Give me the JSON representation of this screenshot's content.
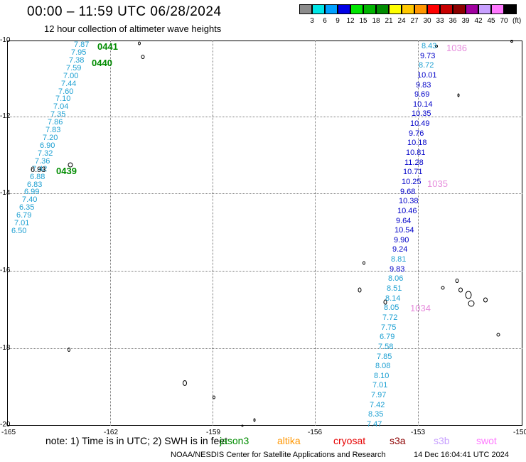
{
  "header": {
    "title": "00:00 – 11:59 UTC 06/28/2024",
    "subtitle": "12 hour collection of altimeter wave heights"
  },
  "color_scale": {
    "labels": [
      "3",
      "6",
      "9",
      "12",
      "15",
      "18",
      "21",
      "24",
      "27",
      "30",
      "33",
      "36",
      "39",
      "42",
      "45",
      "70"
    ],
    "unit": "(ft)",
    "colors": [
      "#8c8c8c",
      "#00e6e6",
      "#00a0ff",
      "#0000e6",
      "#00e600",
      "#00b400",
      "#008c00",
      "#ffff00",
      "#ffc800",
      "#ff9600",
      "#ff0000",
      "#c80000",
      "#8c0000",
      "#a000a0",
      "#c8a0ff",
      "#ff78ff",
      "#000000"
    ]
  },
  "map": {
    "lon_ticks": [
      "-165",
      "-162",
      "-159",
      "-156",
      "-153",
      "-150"
    ],
    "lat_ticks": [
      "-10",
      "-12",
      "-14",
      "-16",
      "-18",
      "-20"
    ]
  },
  "track_left": {
    "color": "#1ea0d2",
    "values": [
      "7.87",
      "7.95",
      "7.38",
      "7.59",
      "7.00",
      "7.44",
      "7.60",
      "7.10",
      "7.04",
      "7.35",
      "7.86",
      "7.83",
      "7.20",
      "6.90",
      "7.32",
      "7.36",
      "7.42",
      "6.88",
      "6.83",
      "6.99",
      "7.40",
      "6.35",
      "6.79",
      "7.01",
      "6.50"
    ],
    "extra_value": "6.93"
  },
  "track_right": {
    "values": [
      "8.43",
      "9.73",
      "8.72",
      "10.01",
      "9.83",
      "9.69",
      "10.14",
      "10.35",
      "10.49",
      "9.76",
      "10.18",
      "10.81",
      "11.28",
      "10.71",
      "10.25",
      "9.68",
      "10.38",
      "10.46",
      "9.64",
      "10.54",
      "9.90",
      "9.24",
      "8.81",
      "9.83",
      "8.06",
      "8.51",
      "8.14",
      "8.05",
      "7.72",
      "7.75",
      "6.79",
      "7.58",
      "7.85",
      "8.08",
      "8.10",
      "7.01",
      "7.97",
      "7.42",
      "8.35",
      "7.47"
    ],
    "colors": [
      "#1ea0d2",
      "#0000c8",
      "#1ea0d2",
      "#0000c8",
      "#0000c8",
      "#0000c8",
      "#0000c8",
      "#0000c8",
      "#0000c8",
      "#0000c8",
      "#0000c8",
      "#0000c8",
      "#0000c8",
      "#0000c8",
      "#0000c8",
      "#0000c8",
      "#0000c8",
      "#0000c8",
      "#0000c8",
      "#0000c8",
      "#0000c8",
      "#0000c8",
      "#1ea0d2",
      "#0000c8",
      "#1ea0d2",
      "#1ea0d2",
      "#1ea0d2",
      "#1ea0d2",
      "#1ea0d2",
      "#1ea0d2",
      "#1ea0d2",
      "#1ea0d2",
      "#1ea0d2",
      "#1ea0d2",
      "#1ea0d2",
      "#1ea0d2",
      "#1ea0d2",
      "#1ea0d2",
      "#1ea0d2",
      "#1ea0d2"
    ]
  },
  "passes": {
    "p0441": "0441",
    "p0440": "0440",
    "p0439": "0439",
    "p1036": "1036",
    "p1035": "1035",
    "p1034": "1034",
    "left_color": "#008c00",
    "right_color": "#e68cdc"
  },
  "footer": {
    "note": "note: 1) Time is in UTC; 2) SWH is in feet",
    "satellites": [
      {
        "name": "jason3",
        "color": "#008c00"
      },
      {
        "name": "altika",
        "color": "#ff9600"
      },
      {
        "name": "cryosat",
        "color": "#e60000"
      },
      {
        "name": "s3a",
        "color": "#8c0000"
      },
      {
        "name": "s3b",
        "color": "#c8a0ff"
      },
      {
        "name": "swot",
        "color": "#ff78ff"
      }
    ],
    "credit": "NOAA/NESDIS Center for Satellite Applications and Research",
    "date": "14 Dec 16:04:41 UTC 2024"
  }
}
